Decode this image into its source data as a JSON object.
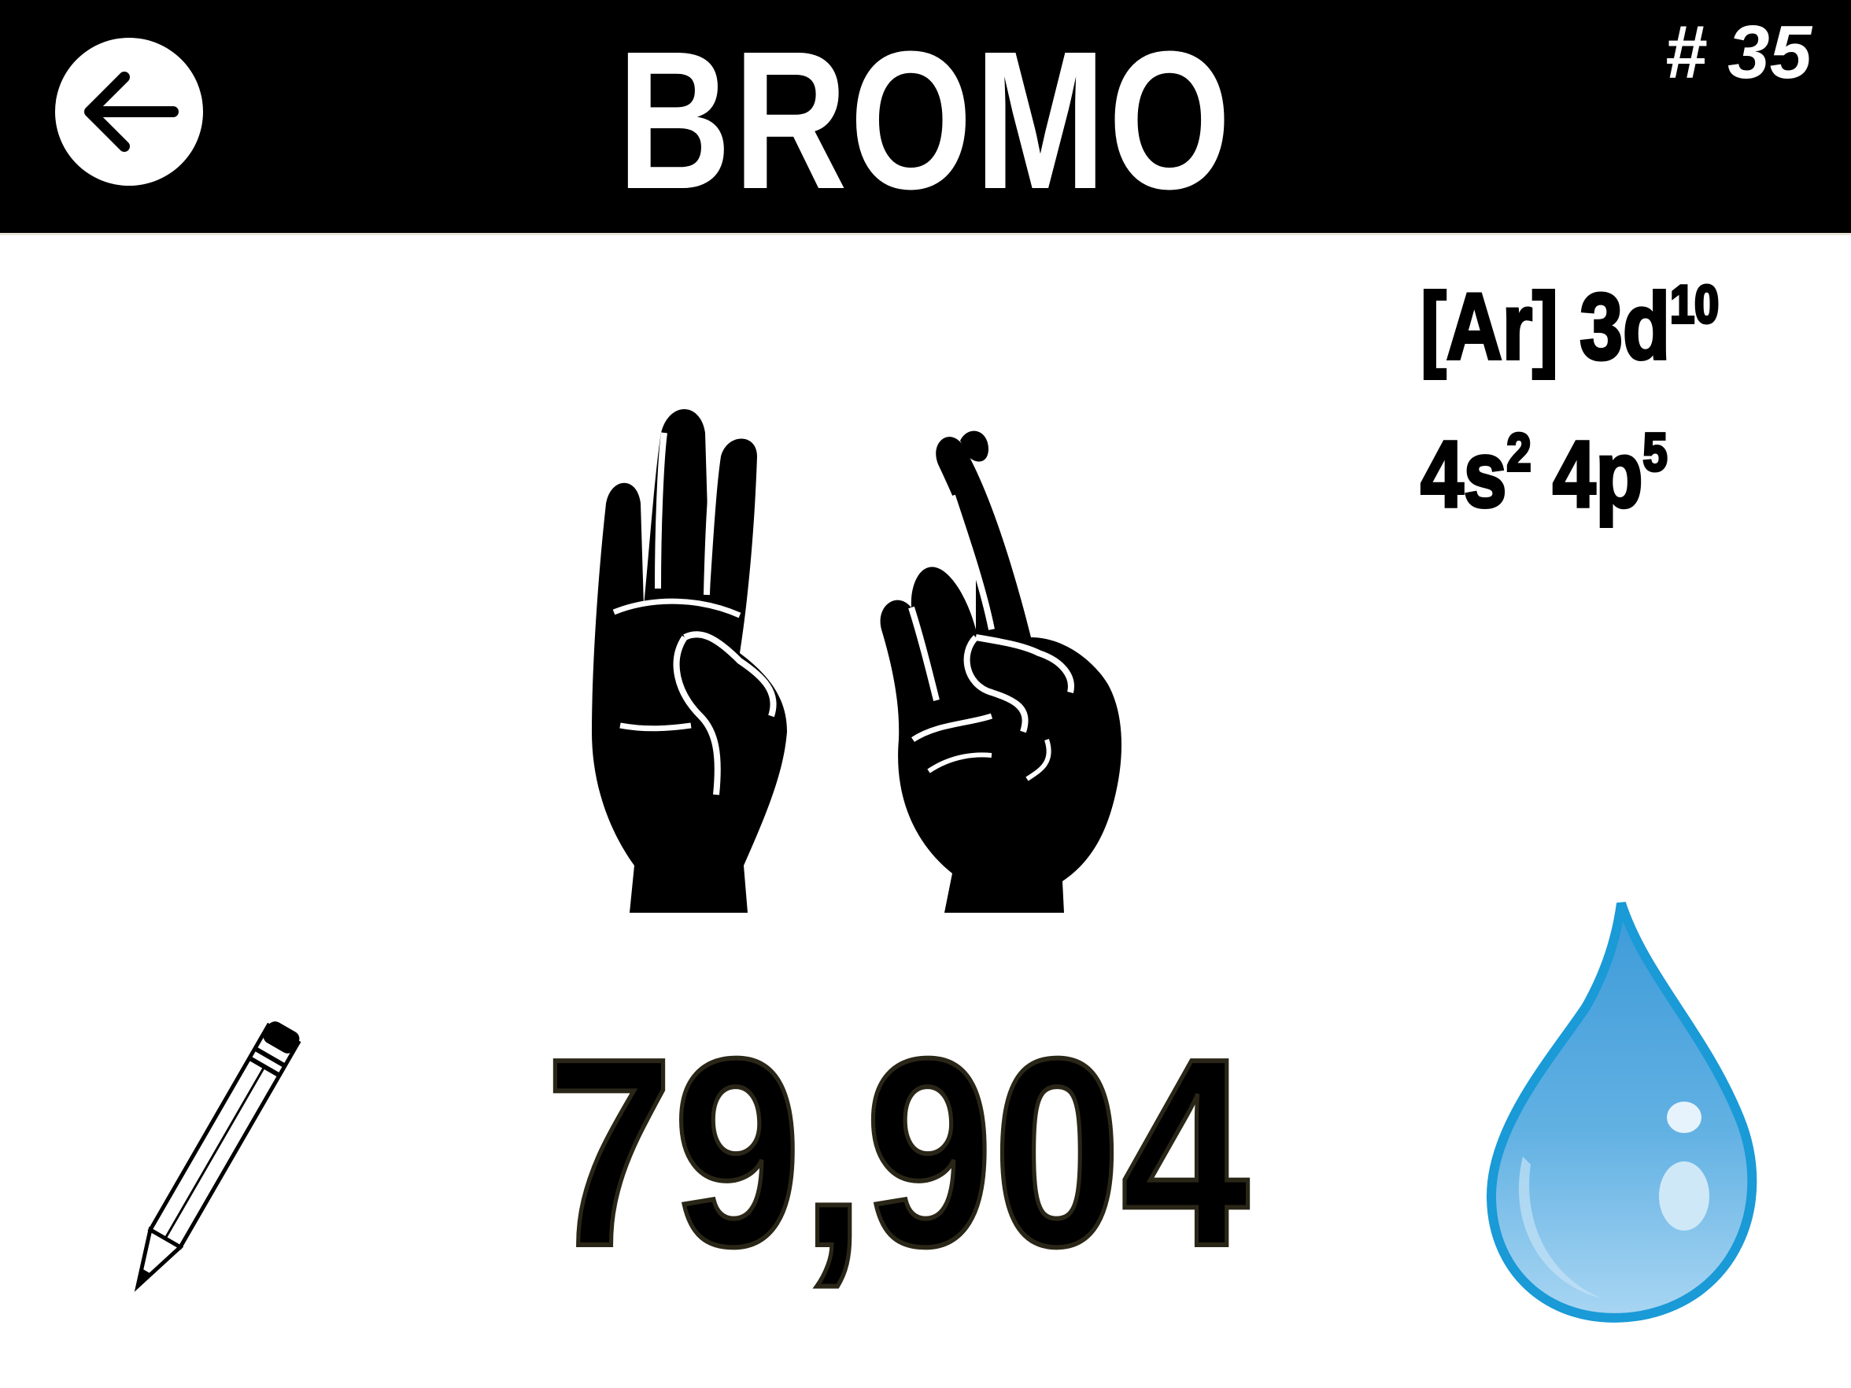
{
  "header": {
    "title": "BROMO",
    "element_number": "# 35",
    "back_icon": "arrow-left-icon"
  },
  "electron_configuration": {
    "core": "[Ar] 3d",
    "d_superscript": "10",
    "s_shell": "4s",
    "s_superscript": "2",
    "p_shell": "4p",
    "p_superscript": "5"
  },
  "atomic_mass": "79,904",
  "icons": {
    "hand_signs": "sign-language-hands-icon",
    "pencil": "pencil-icon",
    "state": "liquid-drop-icon"
  },
  "colors": {
    "header_bg": "#000000",
    "header_text": "#ffffff",
    "drop_outline": "#1a9ad6",
    "drop_fill": "#5aaee0"
  }
}
